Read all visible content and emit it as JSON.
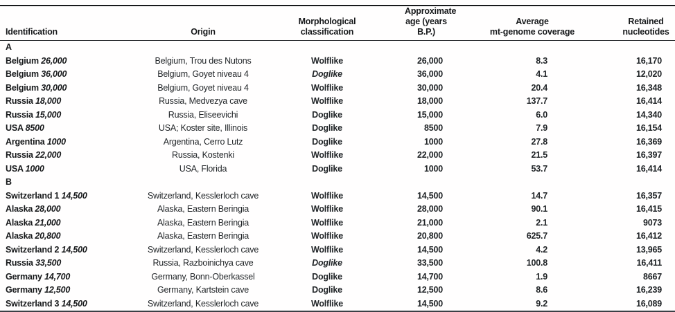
{
  "colors": {
    "background": "#ffffff",
    "text": "#1f2326",
    "rule_top": "#17191b",
    "rule_header": "#26292c",
    "rule_bottom": "#3a4046"
  },
  "table": {
    "columns": [
      {
        "key": "identification",
        "lines": [
          "Identification"
        ]
      },
      {
        "key": "origin",
        "lines": [
          "Origin"
        ]
      },
      {
        "key": "classification",
        "lines": [
          "Morphological",
          "classification"
        ]
      },
      {
        "key": "age",
        "lines": [
          "Approximate",
          "age (years B.P.)"
        ]
      },
      {
        "key": "coverage",
        "lines": [
          "Average",
          "mt-genome coverage"
        ]
      },
      {
        "key": "retained",
        "lines": [
          "Retained",
          "nucleotides"
        ]
      }
    ],
    "sections": [
      {
        "label": "A",
        "rows": [
          {
            "id_name": "Belgium",
            "id_num": "26,000",
            "origin": "Belgium, Trou des Nutons",
            "classification": "Wolflike",
            "classification_italic": false,
            "age": "26,000",
            "coverage": "8.3",
            "retained": "16,170"
          },
          {
            "id_name": "Belgium",
            "id_num": "36,000",
            "origin": "Belgium, Goyet niveau 4",
            "classification": "Doglike",
            "classification_italic": true,
            "age": "36,000",
            "coverage": "4.1",
            "retained": "12,020"
          },
          {
            "id_name": "Belgium",
            "id_num": "30,000",
            "origin": "Belgium, Goyet niveau 4",
            "classification": "Wolflike",
            "classification_italic": false,
            "age": "30,000",
            "coverage": "20.4",
            "retained": "16,348"
          },
          {
            "id_name": "Russia",
            "id_num": "18,000",
            "origin": "Russia, Medvezya cave",
            "classification": "Wolflike",
            "classification_italic": false,
            "age": "18,000",
            "coverage": "137.7",
            "retained": "16,414"
          },
          {
            "id_name": "Russia",
            "id_num": "15,000",
            "origin": "Russia, Eliseevichi",
            "classification": "Doglike",
            "classification_italic": false,
            "age": "15,000",
            "coverage": "6.0",
            "retained": "14,340"
          },
          {
            "id_name": "USA",
            "id_num": "8500",
            "origin": "USA; Koster site, Illinois",
            "classification": "Doglike",
            "classification_italic": false,
            "age": "8500",
            "coverage": "7.9",
            "retained": "16,154"
          },
          {
            "id_name": "Argentina",
            "id_num": "1000",
            "origin": "Argentina, Cerro Lutz",
            "classification": "Doglike",
            "classification_italic": false,
            "age": "1000",
            "coverage": "27.8",
            "retained": "16,369"
          },
          {
            "id_name": "Russia",
            "id_num": "22,000",
            "origin": "Russia, Kostenki",
            "classification": "Wolflike",
            "classification_italic": false,
            "age": "22,000",
            "coverage": "21.5",
            "retained": "16,397"
          },
          {
            "id_name": "USA",
            "id_num": "1000",
            "origin": "USA, Florida",
            "classification": "Doglike",
            "classification_italic": false,
            "age": "1000",
            "coverage": "53.7",
            "retained": "16,414"
          }
        ]
      },
      {
        "label": "B",
        "rows": [
          {
            "id_name": "Switzerland 1",
            "id_num": "14,500",
            "origin": "Switzerland, Kesslerloch cave",
            "classification": "Wolflike",
            "classification_italic": false,
            "age": "14,500",
            "coverage": "14.7",
            "retained": "16,357"
          },
          {
            "id_name": "Alaska",
            "id_num": "28,000",
            "origin": "Alaska, Eastern Beringia",
            "classification": "Wolflike",
            "classification_italic": false,
            "age": "28,000",
            "coverage": "90.1",
            "retained": "16,415"
          },
          {
            "id_name": "Alaska",
            "id_num": "21,000",
            "origin": "Alaska, Eastern Beringia",
            "classification": "Wolflike",
            "classification_italic": false,
            "age": "21,000",
            "coverage": "2.1",
            "retained": "9073"
          },
          {
            "id_name": "Alaska",
            "id_num": "20,800",
            "origin": "Alaska, Eastern Beringia",
            "classification": "Wolflike",
            "classification_italic": false,
            "age": "20,800",
            "coverage": "625.7",
            "retained": "16,412"
          },
          {
            "id_name": "Switzerland 2",
            "id_num": "14,500",
            "origin": "Switzerland, Kesslerloch cave",
            "classification": "Wolflike",
            "classification_italic": false,
            "age": "14,500",
            "coverage": "4.2",
            "retained": "13,965"
          },
          {
            "id_name": "Russia",
            "id_num": "33,500",
            "origin": "Russia, Razboinichya cave",
            "classification": "Doglike",
            "classification_italic": true,
            "age": "33,500",
            "coverage": "100.8",
            "retained": "16,411"
          },
          {
            "id_name": "Germany",
            "id_num": "14,700",
            "origin": "Germany, Bonn-Oberkassel",
            "classification": "Doglike",
            "classification_italic": false,
            "age": "14,700",
            "coverage": "1.9",
            "retained": "8667"
          },
          {
            "id_name": "Germany",
            "id_num": "12,500",
            "origin": "Germany, Kartstein cave",
            "classification": "Doglike",
            "classification_italic": false,
            "age": "12,500",
            "coverage": "8.6",
            "retained": "16,239"
          },
          {
            "id_name": "Switzerland 3",
            "id_num": "14,500",
            "origin": "Switzerland, Kesslerloch cave",
            "classification": "Wolflike",
            "classification_italic": false,
            "age": "14,500",
            "coverage": "9.2",
            "retained": "16,089"
          }
        ]
      }
    ]
  }
}
